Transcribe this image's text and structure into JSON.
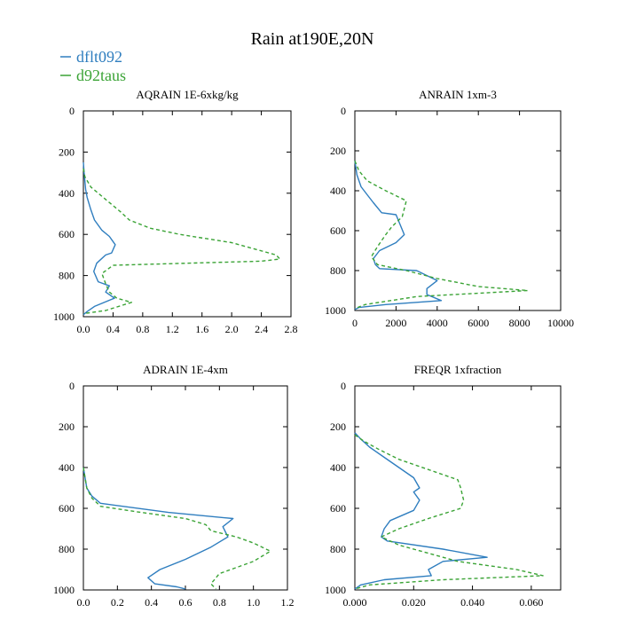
{
  "figure": {
    "title": "Rain at190E,20N",
    "legend": [
      {
        "label": "dflt092",
        "color": "#2f7ebf",
        "style": "solid"
      },
      {
        "label": "d92taus",
        "color": "#3aa335",
        "style": "dashed"
      }
    ]
  },
  "chart_data": [
    {
      "type": "line",
      "title": "AQRAIN  1E-6xkg/kg",
      "xlabel": "",
      "ylabel": "",
      "xlim": [
        0,
        2.8
      ],
      "ylim": [
        1000,
        0
      ],
      "xticks": [
        0.0,
        0.4,
        0.8,
        1.2,
        1.6,
        2.0,
        2.4,
        2.8
      ],
      "xtick_labels": [
        "0.0",
        "0.4",
        "0.8",
        "1.2",
        "1.6",
        "2.0",
        "2.4",
        "2.8"
      ],
      "yticks": [
        0,
        200,
        400,
        600,
        800,
        1000
      ],
      "ytick_labels": [
        "0",
        "200",
        "400",
        "600",
        "800",
        "1000"
      ],
      "series": [
        {
          "name": "dflt092",
          "color": "#2f7ebf",
          "dash": "",
          "x": [
            0,
            0.01,
            0.03,
            0.05,
            0.1,
            0.15,
            0.25,
            0.35,
            0.43,
            0.38,
            0.3,
            0.18,
            0.14,
            0.2,
            0.35,
            0.3,
            0.42,
            0.15,
            0.05,
            0
          ],
          "y": [
            250,
            300,
            380,
            420,
            480,
            530,
            580,
            610,
            650,
            690,
            700,
            740,
            780,
            830,
            850,
            880,
            910,
            950,
            975,
            990
          ]
        },
        {
          "name": "d92taus",
          "color": "#3aa335",
          "dash": "4,3",
          "x": [
            0,
            0.02,
            0.1,
            0.3,
            0.5,
            0.62,
            0.9,
            1.3,
            2.0,
            2.6,
            2.65,
            2.4,
            0.4,
            0.25,
            0.3,
            0.35,
            0.45,
            0.65,
            0.3,
            0
          ],
          "y": [
            280,
            320,
            370,
            430,
            490,
            530,
            570,
            600,
            640,
            700,
            720,
            730,
            750,
            790,
            840,
            880,
            910,
            930,
            970,
            985
          ]
        }
      ]
    },
    {
      "type": "line",
      "title": "ANRAIN  1xm-3",
      "xlabel": "",
      "ylabel": "",
      "xlim": [
        0,
        10000
      ],
      "ylim": [
        1000,
        0
      ],
      "xticks": [
        0,
        2000,
        4000,
        6000,
        8000,
        10000
      ],
      "xtick_labels": [
        "0",
        "2000",
        "4000",
        "6000",
        "8000",
        "10000"
      ],
      "yticks": [
        0,
        200,
        400,
        600,
        800,
        1000
      ],
      "ytick_labels": [
        "0",
        "200",
        "400",
        "600",
        "800",
        "1000"
      ],
      "series": [
        {
          "name": "dflt092",
          "color": "#2f7ebf",
          "dash": "",
          "x": [
            0,
            100,
            300,
            600,
            900,
            1300,
            2000,
            2400,
            2000,
            1200,
            900,
            1000,
            1200,
            3000,
            4000,
            3500,
            3500,
            4200,
            1500,
            200,
            0
          ],
          "y": [
            250,
            320,
            380,
            420,
            460,
            510,
            520,
            620,
            660,
            700,
            740,
            770,
            790,
            800,
            850,
            890,
            920,
            950,
            970,
            985,
            995
          ]
        },
        {
          "name": "d92taus",
          "color": "#3aa335",
          "dash": "4,3",
          "x": [
            0,
            200,
            600,
            1500,
            2500,
            2300,
            1800,
            1500,
            1100,
            800,
            1100,
            2500,
            4000,
            6000,
            8400,
            3000,
            500,
            0
          ],
          "y": [
            250,
            300,
            350,
            400,
            450,
            530,
            580,
            620,
            680,
            730,
            770,
            800,
            840,
            880,
            900,
            930,
            970,
            990
          ]
        }
      ]
    },
    {
      "type": "line",
      "title": "ADRAIN  1E-4xm",
      "xlabel": "",
      "ylabel": "",
      "xlim": [
        0,
        1.2
      ],
      "ylim": [
        1000,
        0
      ],
      "xticks": [
        0.0,
        0.2,
        0.4,
        0.6,
        0.8,
        1.0,
        1.2
      ],
      "xtick_labels": [
        "0.0",
        "0.2",
        "0.4",
        "0.6",
        "0.8",
        "1.0",
        "1.2"
      ],
      "yticks": [
        0,
        200,
        400,
        600,
        800,
        1000
      ],
      "ytick_labels": [
        "0",
        "200",
        "400",
        "600",
        "800",
        "1000"
      ],
      "series": [
        {
          "name": "dflt092",
          "color": "#2f7ebf",
          "dash": "",
          "x": [
            0,
            0.01,
            0.02,
            0.05,
            0.1,
            0.5,
            0.88,
            0.82,
            0.85,
            0.75,
            0.6,
            0.45,
            0.38,
            0.42,
            0.55,
            0.6
          ],
          "y": [
            400,
            450,
            500,
            540,
            575,
            620,
            650,
            690,
            740,
            790,
            850,
            900,
            940,
            970,
            985,
            995
          ]
        },
        {
          "name": "d92taus",
          "color": "#3aa335",
          "dash": "4,3",
          "x": [
            0,
            0.01,
            0.02,
            0.05,
            0.1,
            0.3,
            0.6,
            0.72,
            0.75,
            0.9,
            1.0,
            1.1,
            1.0,
            0.8,
            0.75,
            0.78
          ],
          "y": [
            400,
            450,
            500,
            550,
            590,
            615,
            650,
            680,
            710,
            740,
            770,
            810,
            860,
            920,
            970,
            995
          ]
        }
      ]
    },
    {
      "type": "line",
      "title": "FREQR  1xfraction",
      "xlabel": "",
      "ylabel": "",
      "xlim": [
        0,
        0.07
      ],
      "ylim": [
        1000,
        0
      ],
      "xticks": [
        0.0,
        0.02,
        0.04,
        0.06
      ],
      "xtick_labels": [
        "0.000",
        "0.020",
        "0.040",
        "0.060"
      ],
      "yticks": [
        0,
        200,
        400,
        600,
        800,
        1000
      ],
      "ytick_labels": [
        "0",
        "200",
        "400",
        "600",
        "800",
        "1000"
      ],
      "series": [
        {
          "name": "dflt092",
          "color": "#2f7ebf",
          "dash": "",
          "x": [
            0,
            0.002,
            0.005,
            0.01,
            0.015,
            0.02,
            0.022,
            0.02,
            0.022,
            0.02,
            0.012,
            0.01,
            0.009,
            0.011,
            0.03,
            0.045,
            0.03,
            0.025,
            0.026,
            0.01,
            0.002,
            0
          ],
          "y": [
            230,
            260,
            300,
            350,
            400,
            450,
            500,
            520,
            560,
            610,
            660,
            700,
            740,
            760,
            800,
            840,
            860,
            900,
            930,
            950,
            975,
            995
          ]
        },
        {
          "name": "d92taus",
          "color": "#3aa335",
          "dash": "4,3",
          "x": [
            0,
            0.003,
            0.008,
            0.015,
            0.025,
            0.035,
            0.036,
            0.037,
            0.036,
            0.025,
            0.015,
            0.009,
            0.015,
            0.025,
            0.035,
            0.045,
            0.055,
            0.064,
            0.03,
            0.005,
            0
          ],
          "y": [
            240,
            270,
            310,
            360,
            410,
            460,
            500,
            560,
            600,
            650,
            700,
            740,
            780,
            820,
            860,
            880,
            900,
            930,
            950,
            975,
            995
          ]
        }
      ]
    }
  ]
}
